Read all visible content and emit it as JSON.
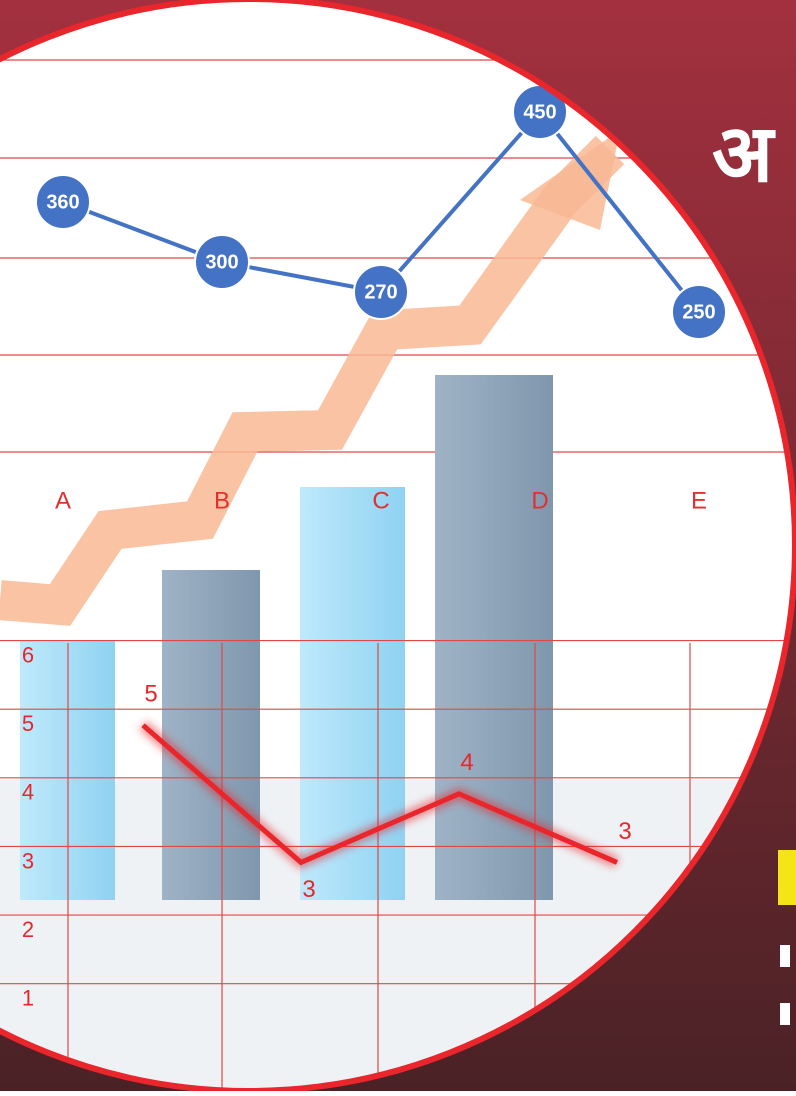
{
  "cover": {
    "title": "अ"
  },
  "chart_data": [
    {
      "type": "line",
      "categories": [
        "A",
        "B",
        "C",
        "D",
        "E"
      ],
      "values": [
        360,
        300,
        270,
        450,
        250
      ],
      "color": "#4472c4",
      "label_color": "#e03030"
    },
    {
      "type": "line",
      "values": [
        5,
        3,
        4,
        3
      ],
      "ylim": [
        0.5,
        6.3
      ],
      "yticks": [
        1,
        2,
        3,
        4,
        5,
        6
      ],
      "grid": true,
      "color": "#e8262c"
    }
  ]
}
